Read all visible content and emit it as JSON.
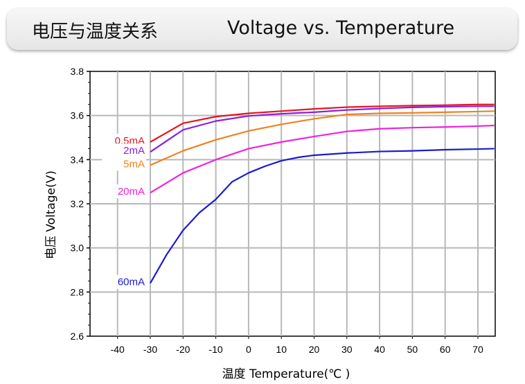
{
  "header": {
    "title_cn": "电压与温度关系",
    "title_en": "Voltage vs. Temperature"
  },
  "chart_data": {
    "type": "line",
    "title": "Voltage vs. Temperature",
    "xlabel": "温度 Temperature(℃ )",
    "ylabel": "电压 Voltage(V)",
    "xlim": [
      -50,
      75
    ],
    "ylim": [
      2.6,
      3.8
    ],
    "xticks": [
      -40,
      -30,
      -20,
      -10,
      0,
      10,
      20,
      30,
      40,
      50,
      60,
      70
    ],
    "xtick_labels": [
      "-40",
      "-30",
      "-20",
      "-10",
      "0",
      "10",
      "20",
      "30",
      "40",
      "50",
      "60",
      "70"
    ],
    "yticks": [
      2.6,
      2.8,
      3.0,
      3.2,
      3.4,
      3.6,
      3.8
    ],
    "ytick_labels": [
      "2.6",
      "2.8",
      "3.0",
      "3.2",
      "3.4",
      "3.6",
      "3.8"
    ],
    "grid": true,
    "series": [
      {
        "name": "0.5mA",
        "color": "#e8141e",
        "x": [
          -30,
          -20,
          -10,
          0,
          10,
          20,
          30,
          40,
          50,
          60,
          70,
          75
        ],
        "y": [
          3.48,
          3.565,
          3.595,
          3.61,
          3.62,
          3.63,
          3.638,
          3.642,
          3.645,
          3.647,
          3.65,
          3.65
        ]
      },
      {
        "name": "2mA",
        "color": "#8a1ee0",
        "x": [
          -30,
          -20,
          -10,
          0,
          10,
          20,
          30,
          40,
          50,
          60,
          70,
          75
        ],
        "y": [
          3.435,
          3.535,
          3.575,
          3.598,
          3.608,
          3.615,
          3.625,
          3.632,
          3.637,
          3.64,
          3.642,
          3.642
        ]
      },
      {
        "name": "5mA",
        "color": "#f0821e",
        "x": [
          -30,
          -20,
          -10,
          0,
          10,
          20,
          30,
          40,
          50,
          60,
          70,
          75
        ],
        "y": [
          3.375,
          3.44,
          3.49,
          3.53,
          3.56,
          3.585,
          3.605,
          3.61,
          3.612,
          3.615,
          3.618,
          3.62
        ]
      },
      {
        "name": "20mA",
        "color": "#ee22e0",
        "x": [
          -30,
          -20,
          -10,
          0,
          10,
          20,
          30,
          40,
          50,
          60,
          70,
          75
        ],
        "y": [
          3.25,
          3.34,
          3.4,
          3.45,
          3.48,
          3.505,
          3.528,
          3.54,
          3.545,
          3.548,
          3.552,
          3.555
        ]
      },
      {
        "name": "60mA",
        "color": "#1a1ad0",
        "x": [
          -30,
          -25,
          -20,
          -15,
          -10,
          -5,
          0,
          5,
          10,
          15,
          20,
          30,
          40,
          50,
          60,
          70,
          75
        ],
        "y": [
          2.84,
          2.97,
          3.08,
          3.16,
          3.22,
          3.3,
          3.34,
          3.37,
          3.395,
          3.41,
          3.42,
          3.43,
          3.437,
          3.44,
          3.445,
          3.448,
          3.45
        ]
      }
    ]
  }
}
